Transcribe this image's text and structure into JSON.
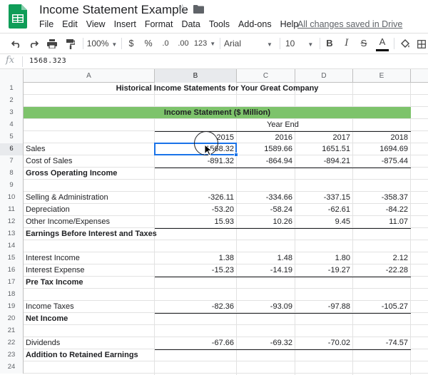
{
  "app": {
    "title": "Income Statement Example",
    "saved_status": "All changes saved in Drive"
  },
  "menu": [
    "File",
    "Edit",
    "View",
    "Insert",
    "Format",
    "Data",
    "Tools",
    "Add-ons",
    "Help"
  ],
  "toolbar": {
    "zoom": "100%",
    "currency": "$",
    "percent": "%",
    "decrease_decimals": ".0",
    "increase_decimals": ".00",
    "more_formats": "123",
    "font": "Arial",
    "font_size": "10",
    "bold": "B",
    "italic": "I",
    "strikethrough": "S",
    "text_color": "A"
  },
  "formula_bar": {
    "fx": "fx",
    "value": "1568.323"
  },
  "columns": [
    "A",
    "B",
    "C",
    "D",
    "E"
  ],
  "rows": [
    "1",
    "2",
    "3",
    "4",
    "5",
    "6",
    "7",
    "8",
    "9",
    "10",
    "11",
    "12",
    "13",
    "14",
    "15",
    "16",
    "17",
    "18",
    "19",
    "20",
    "21",
    "22",
    "23",
    "24"
  ],
  "sheet": {
    "title": "Historical Income Statements for Your Great Company",
    "section_header": "Income Statement ($ Million)",
    "period_header": "Year End",
    "years": [
      "2015",
      "2016",
      "2017",
      "2018"
    ],
    "lines": [
      {
        "row": 6,
        "label": "Sales",
        "bold": false,
        "values": [
          "1568.32",
          "1589.66",
          "1651.51",
          "1694.69"
        ]
      },
      {
        "row": 7,
        "label": "Cost of Sales",
        "bold": false,
        "values": [
          "-891.32",
          "-864.94",
          "-894.21",
          "-875.44"
        ]
      },
      {
        "row": 8,
        "label": "Gross Operating Income",
        "bold": true,
        "values": [
          "",
          "",
          "",
          ""
        ]
      },
      {
        "row": 10,
        "label": "Selling & Administration",
        "bold": false,
        "values": [
          "-326.11",
          "-334.66",
          "-337.15",
          "-358.37"
        ]
      },
      {
        "row": 11,
        "label": "Depreciation",
        "bold": false,
        "values": [
          "-53.20",
          "-58.24",
          "-62.61",
          "-84.22"
        ]
      },
      {
        "row": 12,
        "label": "Other Income/Expenses",
        "bold": false,
        "values": [
          "15.93",
          "10.26",
          "9.45",
          "11.07"
        ]
      },
      {
        "row": 13,
        "label": "Earnings Before Interest and Taxes",
        "bold": true,
        "values": [
          "",
          "",
          "",
          ""
        ]
      },
      {
        "row": 15,
        "label": "Interest Income",
        "bold": false,
        "values": [
          "1.38",
          "1.48",
          "1.80",
          "2.12"
        ]
      },
      {
        "row": 16,
        "label": "Interest Expense",
        "bold": false,
        "values": [
          "-15.23",
          "-14.19",
          "-19.27",
          "-22.28"
        ]
      },
      {
        "row": 17,
        "label": "Pre Tax Income",
        "bold": true,
        "values": [
          "",
          "",
          "",
          ""
        ]
      },
      {
        "row": 19,
        "label": "Income Taxes",
        "bold": false,
        "values": [
          "-82.36",
          "-93.09",
          "-97.88",
          "-105.27"
        ]
      },
      {
        "row": 20,
        "label": "Net Income",
        "bold": true,
        "values": [
          "",
          "",
          "",
          ""
        ]
      },
      {
        "row": 22,
        "label": "Dividends",
        "bold": false,
        "values": [
          "-67.66",
          "-69.32",
          "-70.02",
          "-74.57"
        ]
      },
      {
        "row": 23,
        "label": "Addition to Retained Earnings",
        "bold": true,
        "values": [
          "",
          "",
          "",
          ""
        ]
      }
    ]
  },
  "selected_cell": {
    "column": "B",
    "row": "6"
  },
  "colors": {
    "section_band": "#7dc36b",
    "selection": "#1a73e8",
    "sheets_green": "#0f9d58"
  },
  "icons": [
    "sheets-logo-icon",
    "star-icon",
    "folder-icon",
    "undo-icon",
    "redo-icon",
    "print-icon",
    "paint-format-icon",
    "fill-color-icon",
    "borders-icon",
    "pointer-icon"
  ]
}
